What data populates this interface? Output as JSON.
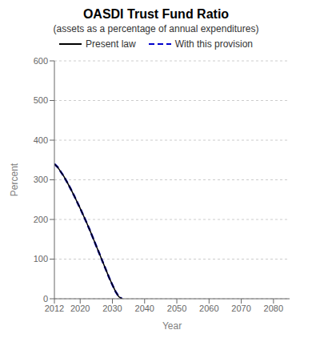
{
  "chart_data": {
    "type": "line",
    "title": "OASDI Trust Fund Ratio",
    "subtitle": "(assets as a percentage of annual expenditures)",
    "x_label": "Year",
    "y_label": "Percent",
    "x": [
      2012,
      2013,
      2014,
      2015,
      2016,
      2017,
      2018,
      2019,
      2020,
      2021,
      2022,
      2023,
      2024,
      2025,
      2026,
      2027,
      2028,
      2029,
      2030,
      2031,
      2032,
      2033
    ],
    "series": [
      {
        "name": "Present law",
        "color": "#000000",
        "line_style": "solid",
        "values": [
          340,
          332,
          320,
          308,
          293,
          278,
          262,
          245,
          228,
          210,
          192,
          173,
          153,
          133,
          113,
          93,
          73,
          53,
          35,
          18,
          5,
          0
        ]
      },
      {
        "name": "With this provision",
        "color": "#0000cc",
        "line_style": "dashed",
        "values": [
          340,
          332,
          320,
          308,
          293,
          278,
          262,
          245,
          228,
          210,
          192,
          173,
          153,
          133,
          113,
          93,
          73,
          53,
          35,
          18,
          5,
          0
        ]
      }
    ],
    "xlim": [
      2012,
      2085
    ],
    "ylim": [
      0,
      600
    ],
    "xticks": [
      2012,
      2020,
      2030,
      2040,
      2050,
      2060,
      2070,
      2080
    ],
    "yticks": [
      0,
      100,
      200,
      300,
      400,
      500,
      600
    ],
    "grid": true,
    "legend": "top"
  }
}
